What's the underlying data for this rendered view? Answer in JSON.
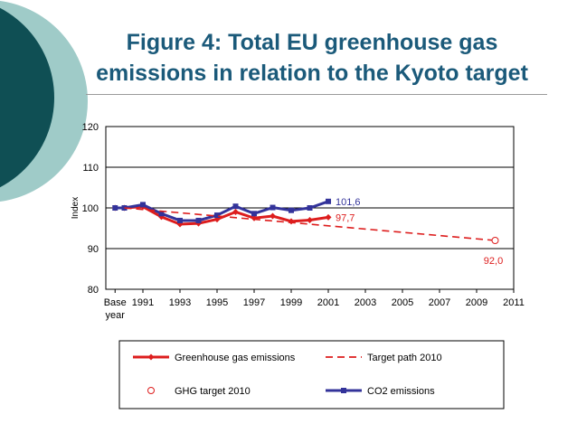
{
  "slide": {
    "title_line1": "Figure 4: Total EU greenhouse gas",
    "title_line2": "emissions in relation to the Kyoto target"
  },
  "colors": {
    "title": "#1b5a7a",
    "deco_dark": "#0f4f54",
    "deco_light": "#9fcbc8",
    "ghg": "#dd1d1d",
    "target": "#dd1d1d",
    "co2": "#33339a",
    "grid": "#000000"
  },
  "chart_data": {
    "type": "line",
    "ylabel": "Index",
    "ylim": [
      80,
      120
    ],
    "yticks": [
      80,
      90,
      100,
      110,
      120
    ],
    "grid": "horizontal",
    "x_ticks": [
      "Base year",
      "1991",
      "1993",
      "1995",
      "1997",
      "1999",
      "2001",
      "2003",
      "2005",
      "2007",
      "2009",
      "2011"
    ],
    "series": [
      {
        "name": "Greenhouse gas emissions",
        "x": [
          "Base year",
          1990,
          1991,
          1992,
          1993,
          1994,
          1995,
          1996,
          1997,
          1998,
          1999,
          2000,
          2001
        ],
        "y": [
          100,
          100,
          100.3,
          97.8,
          96,
          96.2,
          97.2,
          99,
          97.5,
          98,
          96.7,
          97,
          97.7
        ],
        "style": "line-diamond",
        "end_label": "97,7"
      },
      {
        "name": "CO2 emissions",
        "x": [
          "Base year",
          1990,
          1991,
          1992,
          1993,
          1994,
          1995,
          1996,
          1997,
          1998,
          1999,
          2000,
          2001
        ],
        "y": [
          100,
          100,
          100.8,
          98.6,
          96.9,
          96.9,
          98.2,
          100.4,
          98.6,
          100.1,
          99.4,
          100,
          101.6
        ],
        "style": "line-square",
        "end_label": "101,6"
      },
      {
        "name": "Target path 2010",
        "x": [
          1990,
          2010
        ],
        "y": [
          100,
          92
        ],
        "style": "dashed"
      },
      {
        "name": "GHG target 2010",
        "x": [
          2010
        ],
        "y": [
          92
        ],
        "style": "open-diamond",
        "end_label": "92,0"
      }
    ],
    "legend": {
      "placement": "bottom",
      "entries": [
        "Greenhouse gas emissions",
        "Target path 2010",
        "GHG target 2010",
        "CO2 emissions"
      ]
    }
  }
}
